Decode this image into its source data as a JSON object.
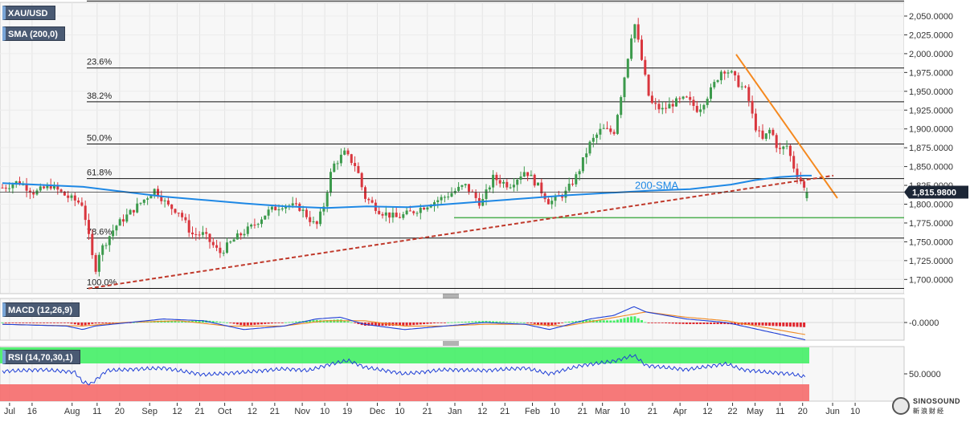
{
  "chart_data": [
    {
      "type": "candlestick",
      "symbol_label": "XAU/USD",
      "indicator_label": "SMA (200,0)",
      "sma_label": "200-SMA",
      "y_ticks": [
        "2,050.0000",
        "2,025.0000",
        "2,000.0000",
        "1,975.0000",
        "1,950.0000",
        "1,925.0000",
        "1,900.0000",
        "1,875.0000",
        "1,850.0000",
        "1,825.0000",
        "1,800.0000",
        "1,775.0000",
        "1,750.0000",
        "1,725.0000",
        "1,700.0000"
      ],
      "y_tick_values": [
        2050,
        2025,
        2000,
        1975,
        1950,
        1925,
        1900,
        1875,
        1850,
        1825,
        1800,
        1775,
        1750,
        1725,
        1700
      ],
      "ylim": [
        1688,
        2072
      ],
      "last_price": 1815.98,
      "last_price_label": "1,815.9800",
      "fib_levels": [
        {
          "label": "23.6%",
          "value": 1981
        },
        {
          "label": "38.2%",
          "value": 1936
        },
        {
          "label": "50.0%",
          "value": 1880
        },
        {
          "label": "61.8%",
          "value": 1834
        },
        {
          "label": "78.6%",
          "value": 1755
        },
        {
          "label": "100.0%",
          "value": 1688
        }
      ],
      "top_line_value": 2070,
      "support_level": 1782,
      "ascending_trendline": {
        "from": [
          "Aug 10",
          1688
        ],
        "to": [
          "Jun 5",
          1838
        ]
      },
      "descending_trendline": {
        "from": [
          "Apr 18",
          1999
        ],
        "to": [
          "May 23",
          1808
        ]
      }
    },
    {
      "type": "line",
      "label": "MACD (12,26,9)",
      "y_tick": "-0.0000",
      "series": [
        {
          "values": []
        },
        {
          "values": []
        }
      ],
      "histogram": true
    },
    {
      "type": "line",
      "label": "RSI (14,70,30,1)",
      "y_tick": "50.0000",
      "overbought": 70,
      "oversold": 30,
      "series": [
        {
          "values": []
        }
      ]
    }
  ],
  "x_ticks": [
    "Jul",
    "16",
    "Aug",
    "11",
    "20",
    "Sep",
    "12",
    "21",
    "Oct",
    "12",
    "21",
    "Nov",
    "10",
    "19",
    "Dec",
    "10",
    "21",
    "Jan",
    "12",
    "21",
    "Feb",
    "10",
    "21",
    "Mar",
    "10",
    "21",
    "Apr",
    "12",
    "22",
    "May",
    "11",
    "20",
    "Jun",
    "10"
  ],
  "x_tick_dates": [
    [
      "Jul",
      7
    ],
    [
      "Jul",
      16
    ],
    [
      "Aug",
      1
    ],
    [
      "Aug",
      11
    ],
    [
      "Aug",
      20
    ],
    [
      "Sep",
      1
    ],
    [
      "Sep",
      12
    ],
    [
      "Sep",
      21
    ],
    [
      "Oct",
      1
    ],
    [
      "Oct",
      12
    ],
    [
      "Oct",
      21
    ],
    [
      "Nov",
      1
    ],
    [
      "Nov",
      10
    ],
    [
      "Nov",
      19
    ],
    [
      "Dec",
      1
    ],
    [
      "Dec",
      10
    ],
    [
      "Dec",
      21
    ],
    [
      "Jan",
      1
    ],
    [
      "Jan",
      12
    ],
    [
      "Jan",
      21
    ],
    [
      "Feb",
      1
    ],
    [
      "Feb",
      10
    ],
    [
      "Feb",
      21
    ],
    [
      "Mar",
      1
    ],
    [
      "Mar",
      10
    ],
    [
      "Mar",
      21
    ],
    [
      "Apr",
      1
    ],
    [
      "Apr",
      12
    ],
    [
      "Apr",
      22
    ],
    [
      "May",
      1
    ],
    [
      "May",
      11
    ],
    [
      "May",
      20
    ],
    [
      "Jun",
      1
    ],
    [
      "Jun",
      10
    ]
  ],
  "colors": {
    "up": "#3c9a4c",
    "down": "#d9363e",
    "sma": "#1e88e5",
    "fib": "#111111",
    "trend_dotted": "#c0392b",
    "trend_desc": "#f5891f",
    "support": "#4caf50",
    "rsi_hi": "#44ee66",
    "rsi_lo": "#f56a6a",
    "macd": "#1f3fd6",
    "signal": "#f08a24"
  },
  "watermark": {
    "line1": "SINOSOUND",
    "line2": "新浪财经"
  }
}
